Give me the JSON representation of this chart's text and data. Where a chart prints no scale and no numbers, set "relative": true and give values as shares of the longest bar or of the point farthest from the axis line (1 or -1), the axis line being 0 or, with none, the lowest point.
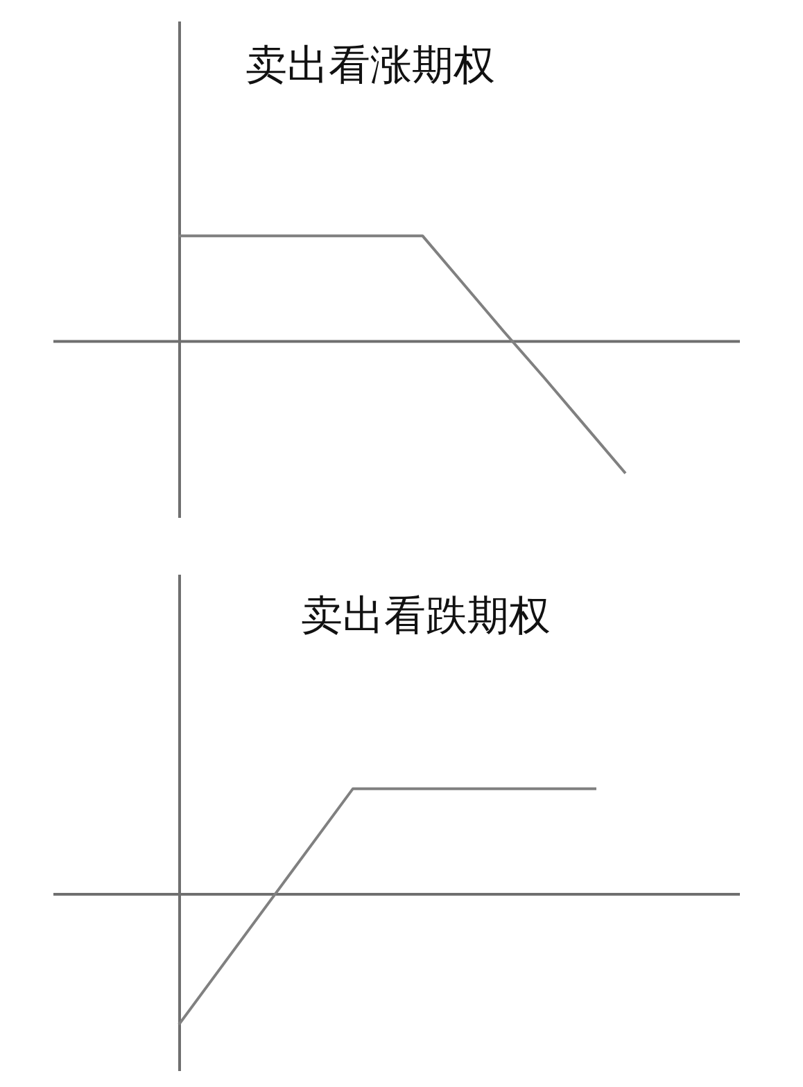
{
  "chart_data": [
    {
      "type": "line",
      "title": "卖出看涨期权",
      "relative": true,
      "line_style": "solid",
      "categories": [
        null,
        null,
        null,
        null,
        null,
        null,
        null,
        null,
        null,
        null,
        null,
        null
      ],
      "series": [
        {
          "color": "#808080",
          "values": [
            0.79,
            0.79,
            0.79,
            0.79,
            0.79,
            0.79,
            0.79,
            0.43,
            0.07,
            -0.28,
            -0.64,
            -1
          ]
        }
      ]
    },
    {
      "type": "line",
      "title": "卖出看跌期权",
      "relative": true,
      "line_style": "solid",
      "categories": [
        null,
        null,
        null,
        null,
        null,
        null,
        null,
        null,
        null,
        null,
        null,
        null,
        null
      ],
      "series": [
        {
          "color": "#808080",
          "values": [
            -1,
            -0.64,
            -0.28,
            0.08,
            0.44,
            0.8,
            0.8,
            0.8,
            0.8,
            0.8,
            0.8,
            0.8,
            0.8
          ]
        }
      ]
    }
  ]
}
